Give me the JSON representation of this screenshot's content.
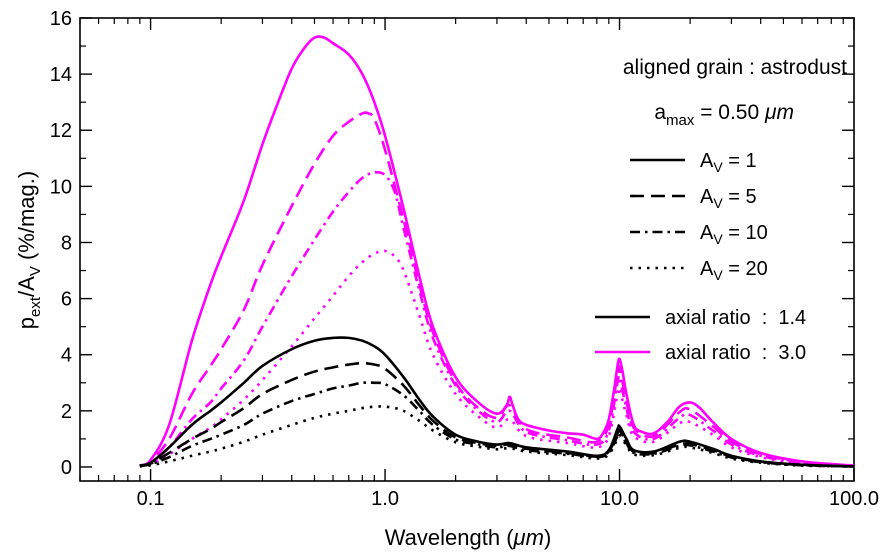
{
  "chart_data": {
    "type": "line",
    "xscale": "log",
    "xlim": [
      0.05,
      100.0
    ],
    "ylim": [
      -0.5,
      16
    ],
    "xlabel": {
      "main": "Wavelength (",
      "unit": "μm",
      "close": ")"
    },
    "ylabel": {
      "p": "p",
      "p_sub": "ext",
      "slash": "/A",
      "a_sub": "V",
      "units": " (%/mag.)"
    },
    "xticks": [
      {
        "value": 0.1,
        "label": "0.1"
      },
      {
        "value": 1.0,
        "label": "1.0"
      },
      {
        "value": 10.0,
        "label": "10.0"
      },
      {
        "value": 100.0,
        "label": "100.0"
      }
    ],
    "yticks": [
      {
        "value": 0,
        "label": "0"
      },
      {
        "value": 2,
        "label": "2"
      },
      {
        "value": 4,
        "label": "4"
      },
      {
        "value": 6,
        "label": "6"
      },
      {
        "value": 8,
        "label": "8"
      },
      {
        "value": 10,
        "label": "10"
      },
      {
        "value": 12,
        "label": "12"
      },
      {
        "value": 14,
        "label": "14"
      },
      {
        "value": 16,
        "label": "16"
      }
    ],
    "annotations": {
      "title_line1": "aligned grain : astrodust",
      "amax_a": "a",
      "amax_sub": "max",
      "amax_eq": " = 0.50 ",
      "amax_unit": "μm"
    },
    "legend_av": [
      {
        "prefix": "A",
        "sub": "V",
        "suffix": " = 1",
        "style": "solid"
      },
      {
        "prefix": "A",
        "sub": "V",
        "suffix": " = 5",
        "style": "dashed"
      },
      {
        "prefix": "A",
        "sub": "V",
        "suffix": " = 10",
        "style": "dashdot"
      },
      {
        "prefix": "A",
        "sub": "V",
        "suffix": " = 20",
        "style": "dotted"
      }
    ],
    "legend_ratio": [
      {
        "label": "axial ratio  :  1.4",
        "color": "#000000"
      },
      {
        "label": "axial ratio  :  3.0",
        "color": "#ff00ff"
      }
    ],
    "series": [
      {
        "name": "axial ratio 3.0, AV=1",
        "color": "#ff00ff",
        "style": "solid",
        "x": [
          0.09,
          0.1,
          0.12,
          0.15,
          0.18,
          0.2,
          0.25,
          0.3,
          0.35,
          0.4,
          0.45,
          0.5,
          0.55,
          0.6,
          0.7,
          0.8,
          0.9,
          1.0,
          1.2,
          1.4,
          1.6,
          2.0,
          2.5,
          3.0,
          3.3,
          3.4,
          3.5,
          3.7,
          4.0,
          5.0,
          6.0,
          7.0,
          8.0,
          8.5,
          9.0,
          9.5,
          9.8,
          10.0,
          10.3,
          10.7,
          11.5,
          12.5,
          14,
          16,
          18,
          20,
          22,
          25,
          30,
          40,
          60,
          100
        ],
        "y": [
          0.05,
          0.25,
          1.5,
          4.5,
          6.5,
          7.5,
          9.5,
          11.5,
          13.0,
          14.2,
          14.9,
          15.3,
          15.3,
          15.1,
          14.7,
          14.0,
          13.0,
          11.8,
          9.2,
          6.8,
          5.0,
          3.2,
          2.3,
          1.9,
          2.2,
          2.5,
          2.2,
          1.7,
          1.5,
          1.3,
          1.2,
          1.15,
          1.0,
          1.2,
          1.7,
          2.8,
          3.6,
          3.85,
          3.4,
          2.6,
          1.5,
          1.25,
          1.2,
          1.6,
          2.15,
          2.3,
          2.1,
          1.6,
          1.0,
          0.5,
          0.2,
          0.05
        ]
      },
      {
        "name": "axial ratio 3.0, AV=5",
        "color": "#ff00ff",
        "style": "dashed",
        "x": [
          0.09,
          0.1,
          0.12,
          0.15,
          0.18,
          0.2,
          0.25,
          0.3,
          0.4,
          0.5,
          0.6,
          0.7,
          0.8,
          0.85,
          0.9,
          1.0,
          1.2,
          1.4,
          1.6,
          2.0,
          2.5,
          3.0,
          3.4,
          4.0,
          6.0,
          8.0,
          9.0,
          9.8,
          10.0,
          10.7,
          11.5,
          14,
          18,
          20,
          25,
          30,
          40,
          60,
          100
        ],
        "y": [
          0.05,
          0.2,
          1.0,
          2.6,
          3.6,
          4.2,
          5.6,
          7.2,
          9.3,
          10.8,
          11.8,
          12.3,
          12.6,
          12.6,
          12.4,
          11.3,
          8.8,
          6.5,
          4.8,
          3.0,
          2.1,
          1.75,
          2.2,
          1.35,
          1.05,
          0.9,
          1.5,
          3.3,
          3.5,
          2.35,
          1.4,
          1.1,
          1.95,
          2.05,
          1.45,
          0.9,
          0.45,
          0.18,
          0.05
        ]
      },
      {
        "name": "axial ratio 3.0, AV=10",
        "color": "#ff00ff",
        "style": "dashdot",
        "x": [
          0.09,
          0.1,
          0.12,
          0.15,
          0.18,
          0.2,
          0.25,
          0.3,
          0.4,
          0.5,
          0.6,
          0.7,
          0.8,
          0.9,
          1.0,
          1.1,
          1.2,
          1.4,
          1.6,
          2.0,
          2.5,
          3.0,
          3.4,
          4.0,
          6.0,
          8.0,
          9.0,
          9.8,
          10.0,
          10.7,
          11.5,
          14,
          18,
          20,
          25,
          30,
          40,
          60,
          100
        ],
        "y": [
          0.05,
          0.15,
          0.7,
          1.7,
          2.3,
          2.8,
          3.8,
          5.0,
          6.8,
          8.1,
          9.1,
          9.8,
          10.3,
          10.5,
          10.4,
          9.8,
          8.5,
          6.3,
          4.6,
          2.9,
          2.0,
          1.6,
          2.0,
          1.25,
          0.95,
          0.8,
          1.3,
          3.0,
          3.15,
          2.1,
          1.25,
          1.0,
          1.75,
          1.85,
          1.3,
          0.8,
          0.4,
          0.15,
          0.04
        ]
      },
      {
        "name": "axial ratio 3.0, AV=20",
        "color": "#ff00ff",
        "style": "dotted",
        "x": [
          0.09,
          0.1,
          0.12,
          0.15,
          0.18,
          0.2,
          0.25,
          0.3,
          0.4,
          0.5,
          0.6,
          0.7,
          0.8,
          0.9,
          1.0,
          1.1,
          1.2,
          1.4,
          1.6,
          2.0,
          2.5,
          3.0,
          3.4,
          4.0,
          6.0,
          8.0,
          9.0,
          9.8,
          10.0,
          10.7,
          11.5,
          14,
          18,
          20,
          25,
          30,
          40,
          60,
          100
        ],
        "y": [
          0.03,
          0.1,
          0.45,
          1.0,
          1.4,
          1.7,
          2.4,
          3.1,
          4.3,
          5.3,
          6.1,
          6.8,
          7.3,
          7.6,
          7.7,
          7.5,
          7.0,
          5.4,
          4.0,
          2.6,
          1.8,
          1.4,
          1.7,
          1.1,
          0.85,
          0.7,
          1.1,
          2.6,
          2.75,
          1.85,
          1.1,
          0.9,
          1.55,
          1.6,
          1.15,
          0.7,
          0.35,
          0.12,
          0.03
        ]
      },
      {
        "name": "axial ratio 1.4, AV=1",
        "color": "#000000",
        "style": "solid",
        "x": [
          0.09,
          0.1,
          0.12,
          0.15,
          0.18,
          0.2,
          0.25,
          0.3,
          0.4,
          0.5,
          0.6,
          0.7,
          0.8,
          0.9,
          1.0,
          1.2,
          1.4,
          1.6,
          2.0,
          2.5,
          3.0,
          3.4,
          4.0,
          6.0,
          8.0,
          9.0,
          9.8,
          10.0,
          10.7,
          11.5,
          14,
          18,
          20,
          25,
          30,
          40,
          60,
          100
        ],
        "y": [
          0.05,
          0.15,
          0.7,
          1.5,
          2.0,
          2.3,
          3.0,
          3.6,
          4.2,
          4.5,
          4.6,
          4.6,
          4.5,
          4.3,
          4.0,
          3.2,
          2.4,
          1.8,
          1.15,
          0.9,
          0.8,
          0.85,
          0.7,
          0.55,
          0.4,
          0.6,
          1.35,
          1.45,
          1.0,
          0.6,
          0.55,
          0.9,
          0.9,
          0.65,
          0.4,
          0.2,
          0.08,
          0.02
        ]
      },
      {
        "name": "axial ratio 1.4, AV=5",
        "color": "#000000",
        "style": "dashed",
        "x": [
          0.09,
          0.1,
          0.12,
          0.15,
          0.18,
          0.2,
          0.25,
          0.3,
          0.4,
          0.5,
          0.6,
          0.7,
          0.8,
          0.9,
          1.0,
          1.2,
          1.4,
          1.6,
          2.0,
          2.5,
          3.0,
          3.4,
          4.0,
          6.0,
          8.0,
          9.0,
          9.8,
          10.0,
          10.7,
          11.5,
          14,
          18,
          20,
          25,
          30,
          40,
          60,
          100
        ],
        "y": [
          0.04,
          0.12,
          0.5,
          1.0,
          1.35,
          1.6,
          2.1,
          2.6,
          3.1,
          3.4,
          3.55,
          3.65,
          3.7,
          3.65,
          3.5,
          2.9,
          2.2,
          1.65,
          1.05,
          0.85,
          0.75,
          0.8,
          0.65,
          0.5,
          0.37,
          0.55,
          1.2,
          1.3,
          0.9,
          0.55,
          0.5,
          0.8,
          0.82,
          0.6,
          0.37,
          0.18,
          0.07,
          0.02
        ]
      },
      {
        "name": "axial ratio 1.4, AV=10",
        "color": "#000000",
        "style": "dashdot",
        "x": [
          0.09,
          0.1,
          0.12,
          0.15,
          0.18,
          0.2,
          0.25,
          0.3,
          0.4,
          0.5,
          0.6,
          0.7,
          0.8,
          0.9,
          1.0,
          1.2,
          1.4,
          1.6,
          2.0,
          2.5,
          3.0,
          3.4,
          4.0,
          6.0,
          8.0,
          9.0,
          9.8,
          10.0,
          10.7,
          11.5,
          14,
          18,
          20,
          25,
          30,
          40,
          60,
          100
        ],
        "y": [
          0.03,
          0.1,
          0.35,
          0.75,
          1.0,
          1.15,
          1.5,
          1.9,
          2.35,
          2.6,
          2.8,
          2.9,
          3.0,
          3.0,
          2.95,
          2.55,
          2.0,
          1.5,
          0.98,
          0.8,
          0.7,
          0.75,
          0.6,
          0.47,
          0.35,
          0.5,
          1.1,
          1.2,
          0.85,
          0.5,
          0.47,
          0.75,
          0.77,
          0.55,
          0.34,
          0.17,
          0.06,
          0.02
        ]
      },
      {
        "name": "axial ratio 1.4, AV=20",
        "color": "#000000",
        "style": "dotted",
        "x": [
          0.09,
          0.1,
          0.12,
          0.15,
          0.18,
          0.2,
          0.25,
          0.3,
          0.4,
          0.5,
          0.6,
          0.7,
          0.8,
          0.9,
          1.0,
          1.1,
          1.2,
          1.4,
          1.6,
          2.0,
          2.5,
          3.0,
          3.4,
          4.0,
          6.0,
          8.0,
          9.0,
          9.8,
          10.0,
          10.7,
          11.5,
          14,
          18,
          20,
          25,
          30,
          40,
          60,
          100
        ],
        "y": [
          0.02,
          0.06,
          0.2,
          0.4,
          0.55,
          0.65,
          0.9,
          1.15,
          1.5,
          1.75,
          1.9,
          2.0,
          2.1,
          2.15,
          2.15,
          2.1,
          2.0,
          1.65,
          1.3,
          0.88,
          0.72,
          0.63,
          0.67,
          0.55,
          0.42,
          0.3,
          0.45,
          1.0,
          1.1,
          0.78,
          0.45,
          0.42,
          0.68,
          0.7,
          0.5,
          0.3,
          0.15,
          0.05,
          0.02
        ]
      }
    ]
  }
}
